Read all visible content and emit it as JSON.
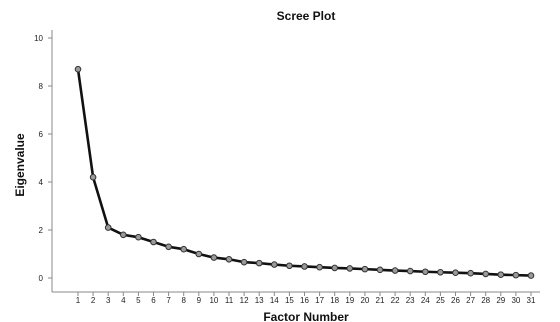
{
  "chart_data": {
    "type": "line",
    "title": "Scree Plot",
    "xlabel": "Factor Number",
    "ylabel": "Eigenvalue",
    "x": [
      1,
      2,
      3,
      4,
      5,
      6,
      7,
      8,
      9,
      10,
      11,
      12,
      13,
      14,
      15,
      16,
      17,
      18,
      19,
      20,
      21,
      22,
      23,
      24,
      25,
      26,
      27,
      28,
      29,
      30,
      31
    ],
    "values": [
      8.7,
      4.2,
      2.1,
      1.8,
      1.7,
      1.5,
      1.3,
      1.2,
      1.0,
      0.85,
      0.78,
      0.66,
      0.62,
      0.56,
      0.51,
      0.48,
      0.45,
      0.42,
      0.4,
      0.37,
      0.34,
      0.31,
      0.29,
      0.26,
      0.24,
      0.22,
      0.2,
      0.17,
      0.14,
      0.12,
      0.1
    ],
    "ylim": [
      0,
      10
    ],
    "yticks": [
      0,
      2,
      4,
      6,
      8,
      10
    ],
    "grid": false,
    "colors": {
      "line": "#111111",
      "marker_fill": "#9a9a9a",
      "marker_stroke": "#333333",
      "axis": "#8a8a8a"
    }
  }
}
